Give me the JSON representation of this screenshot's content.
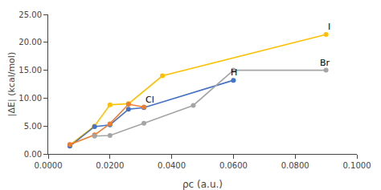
{
  "chart_data": {
    "type": "line",
    "xlabel": "ρᴄ (a.u.)",
    "ylabel": "|ΔE| (kcal/mol)",
    "xlim": [
      0.0,
      0.1
    ],
    "ylim": [
      0.0,
      25.0
    ],
    "xticks": [
      {
        "value": 0.0,
        "label": "0.0000"
      },
      {
        "value": 0.02,
        "label": "0.0200"
      },
      {
        "value": 0.04,
        "label": "0.0400"
      },
      {
        "value": 0.06,
        "label": "0.0600"
      },
      {
        "value": 0.08,
        "label": "0.0800"
      },
      {
        "value": 0.1,
        "label": "0.1000"
      }
    ],
    "yticks": [
      {
        "value": 0.0,
        "label": "0.00"
      },
      {
        "value": 5.0,
        "label": "5.00"
      },
      {
        "value": 10.0,
        "label": "10.00"
      },
      {
        "value": 15.0,
        "label": "15.00"
      },
      {
        "value": 20.0,
        "label": "20.00"
      },
      {
        "value": 25.0,
        "label": "25.00"
      }
    ],
    "grid": false,
    "series": [
      {
        "color": "#FFC000",
        "marker": "circle",
        "line_style": "solid",
        "x": [
          0.007,
          0.015,
          0.02,
          0.026,
          0.037,
          0.09
        ],
        "values": [
          1.6,
          5.0,
          8.8,
          9.0,
          14.0,
          21.4
        ]
      },
      {
        "color": "#4472C4",
        "marker": "circle",
        "line_style": "solid",
        "x": [
          0.007,
          0.015,
          0.02,
          0.026,
          0.031,
          0.06
        ],
        "values": [
          1.4,
          4.9,
          5.2,
          8.0,
          8.3,
          13.2
        ]
      },
      {
        "color": "#ED7D31",
        "marker": "circle",
        "line_style": "solid",
        "x": [
          0.007,
          0.015,
          0.02,
          0.026,
          0.031
        ],
        "values": [
          1.7,
          3.4,
          5.4,
          8.9,
          8.4
        ]
      },
      {
        "color": "#A5A5A5",
        "marker": "circle",
        "line_style": "solid",
        "x": [
          0.015,
          0.02,
          0.031,
          0.047,
          0.06,
          0.09
        ],
        "values": [
          3.2,
          3.3,
          5.5,
          8.7,
          15.0,
          15.0
        ]
      }
    ],
    "annotations": [
      {
        "text": "I",
        "x": 0.0895,
        "y": 21.4
      },
      {
        "text": "H",
        "x": 0.058,
        "y": 13.2
      },
      {
        "text": "Cl",
        "x": 0.0305,
        "y": 8.4
      },
      {
        "text": "Br",
        "x": 0.087,
        "y": 15.0
      }
    ]
  }
}
